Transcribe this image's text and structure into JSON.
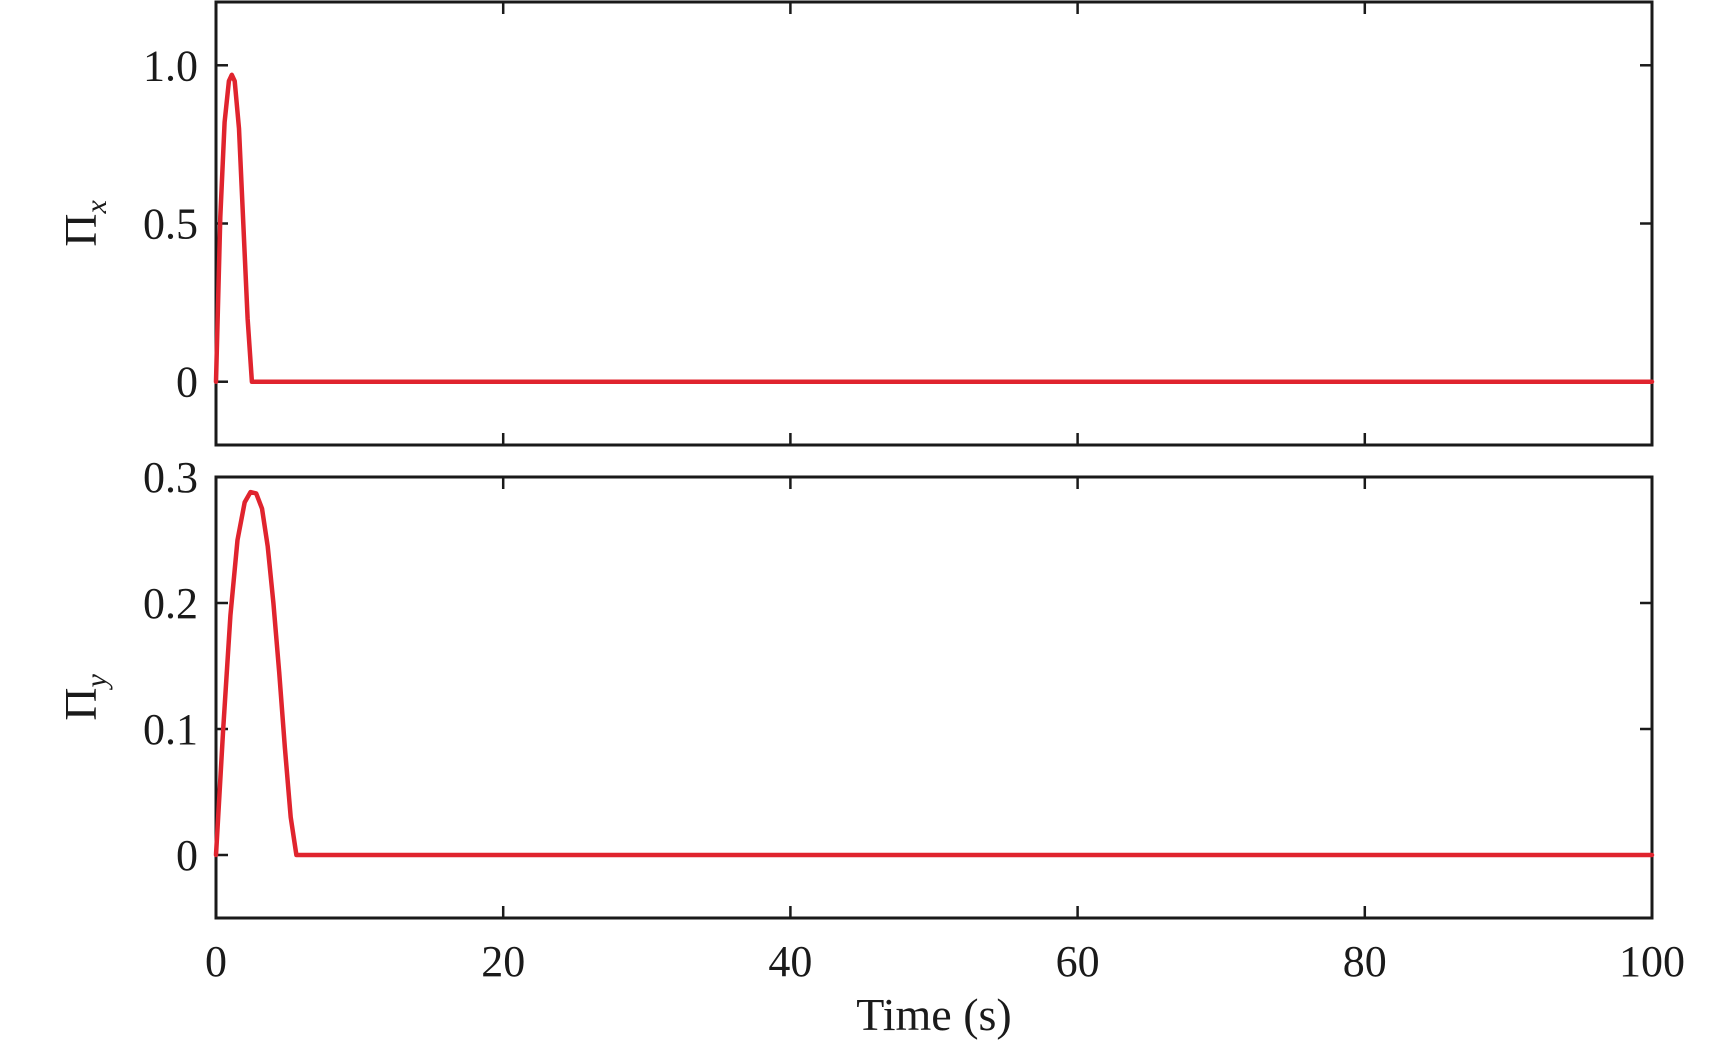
{
  "chart_data": [
    {
      "type": "line",
      "title": "",
      "ylabel": "Π",
      "ylabel_subscript": "x",
      "xlabel": "",
      "xlim": [
        0,
        100
      ],
      "ylim": [
        -0.2,
        1.2
      ],
      "yticks": [
        {
          "value": 0,
          "label": "0"
        },
        {
          "value": 0.5,
          "label": "0.5"
        },
        {
          "value": 1.0,
          "label": "1.0"
        }
      ],
      "xticks": [
        {
          "value": 0,
          "label": ""
        },
        {
          "value": 20,
          "label": ""
        },
        {
          "value": 40,
          "label": ""
        },
        {
          "value": 60,
          "label": ""
        },
        {
          "value": 80,
          "label": ""
        },
        {
          "value": 100,
          "label": ""
        }
      ],
      "grid": false,
      "color": "#e0242e",
      "series": [
        {
          "x": [
            0,
            0.3,
            0.6,
            0.9,
            1.1,
            1.3,
            1.6,
            1.9,
            2.2,
            2.5,
            3,
            10,
            20,
            30,
            40,
            50,
            60,
            70,
            80,
            90,
            100
          ],
          "y": [
            0,
            0.52,
            0.82,
            0.95,
            0.97,
            0.95,
            0.8,
            0.5,
            0.2,
            0.0,
            0.0,
            0,
            0,
            0,
            0,
            0,
            0,
            0,
            0,
            0,
            0
          ]
        }
      ]
    },
    {
      "type": "line",
      "title": "",
      "ylabel": "Π",
      "ylabel_subscript": "y",
      "xlabel": "Time (s)",
      "xlim": [
        0,
        100
      ],
      "ylim": [
        -0.05,
        0.3
      ],
      "yticks": [
        {
          "value": 0,
          "label": "0"
        },
        {
          "value": 0.1,
          "label": "0.1"
        },
        {
          "value": 0.2,
          "label": "0.2"
        },
        {
          "value": 0.3,
          "label": "0.3"
        }
      ],
      "xticks": [
        {
          "value": 0,
          "label": "0"
        },
        {
          "value": 20,
          "label": "20"
        },
        {
          "value": 40,
          "label": "40"
        },
        {
          "value": 60,
          "label": "60"
        },
        {
          "value": 80,
          "label": "80"
        },
        {
          "value": 100,
          "label": "100"
        }
      ],
      "grid": false,
      "color": "#e0242e",
      "series": [
        {
          "x": [
            0,
            0.5,
            1,
            1.5,
            2,
            2.4,
            2.8,
            3.2,
            3.6,
            4,
            4.4,
            4.8,
            5.2,
            5.6,
            6,
            10,
            20,
            30,
            40,
            50,
            60,
            70,
            80,
            90,
            100
          ],
          "y": [
            0,
            0.1,
            0.19,
            0.25,
            0.28,
            0.288,
            0.287,
            0.275,
            0.245,
            0.2,
            0.145,
            0.085,
            0.03,
            0.0,
            0.0,
            0,
            0,
            0,
            0,
            0,
            0,
            0,
            0,
            0,
            0
          ]
        }
      ]
    }
  ]
}
